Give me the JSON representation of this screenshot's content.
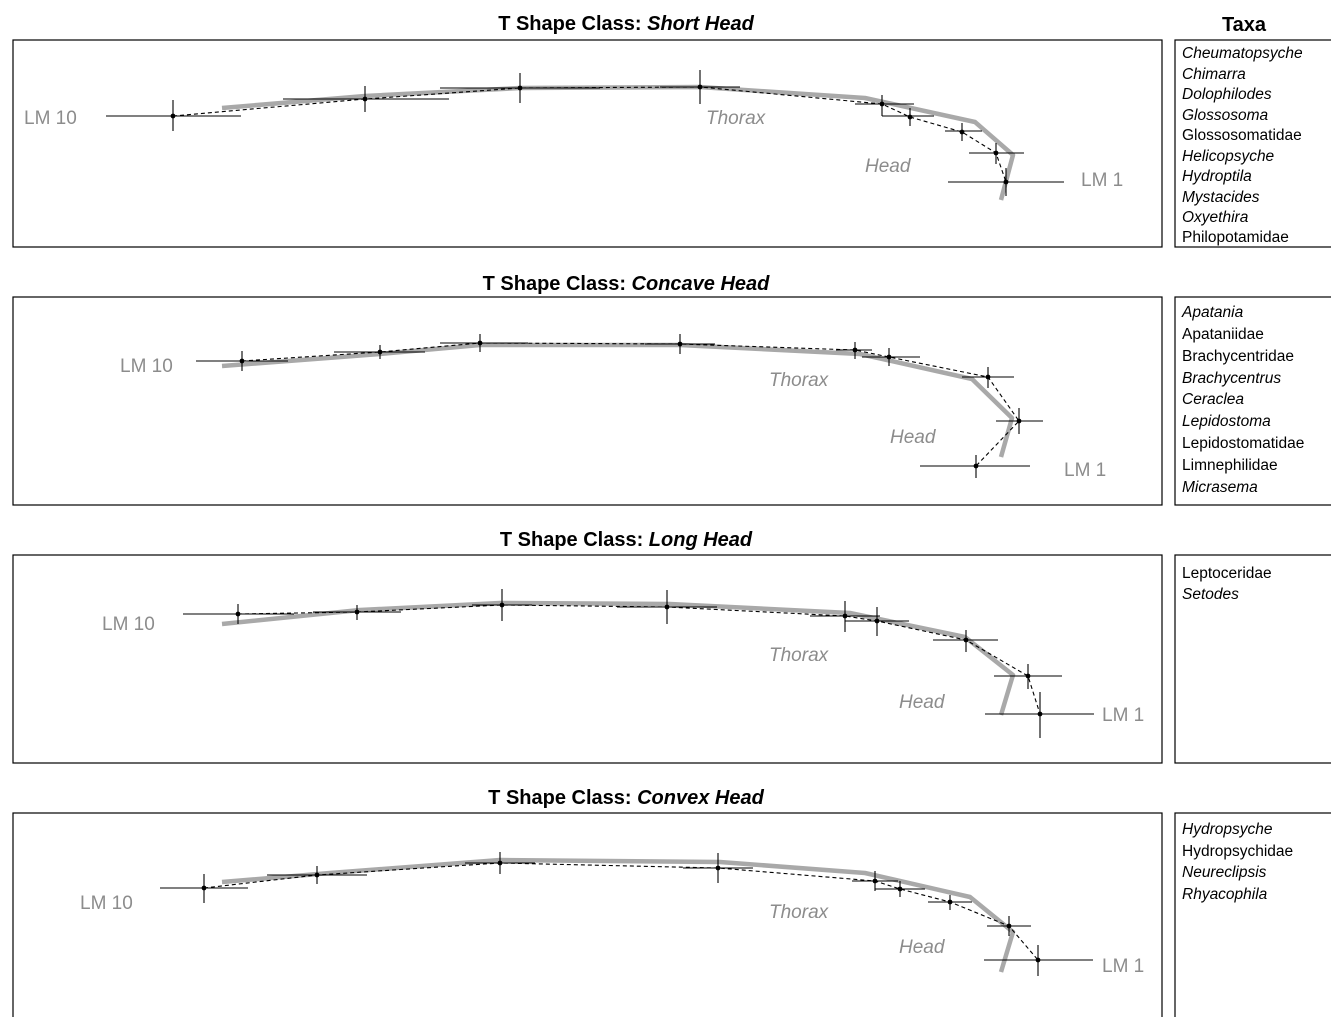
{
  "taxa_header": "Taxa",
  "colors": {
    "mean_shape": "#a9a9a9",
    "landmarks": "#000000",
    "labels": "#8c8c8c"
  },
  "panels": [
    {
      "title_prefix": "T Shape Class: ",
      "title_class": "Short Head",
      "lm_start_label": "LM 10",
      "lm_end_label": "LM 1",
      "thorax_label": "Thorax",
      "head_label": "Head",
      "taxa": [
        {
          "name": "Cheumatopsyche",
          "italic": true
        },
        {
          "name": "Chimarra",
          "italic": true
        },
        {
          "name": "Dolophilodes",
          "italic": true
        },
        {
          "name": "Glossosoma",
          "italic": true
        },
        {
          "name": "Glossosomatidae",
          "italic": false
        },
        {
          "name": "Helicopsyche",
          "italic": true
        },
        {
          "name": "Hydroptila",
          "italic": true
        },
        {
          "name": "Mystacides",
          "italic": true
        },
        {
          "name": "Oxyethira",
          "italic": true
        },
        {
          "name": "Philopotamidae",
          "italic": false
        }
      ]
    },
    {
      "title_prefix": "T Shape Class: ",
      "title_class": "Concave Head",
      "lm_start_label": "LM 10",
      "lm_end_label": "LM 1",
      "thorax_label": "Thorax",
      "head_label": "Head",
      "taxa": [
        {
          "name": "Apatania",
          "italic": true
        },
        {
          "name": "Apataniidae",
          "italic": false
        },
        {
          "name": "Brachycentridae",
          "italic": false
        },
        {
          "name": "Brachycentrus",
          "italic": true
        },
        {
          "name": "Ceraclea",
          "italic": true
        },
        {
          "name": "Lepidostoma",
          "italic": true
        },
        {
          "name": "Lepidostomatidae",
          "italic": false
        },
        {
          "name": "Limnephilidae",
          "italic": false
        },
        {
          "name": "Micrasema",
          "italic": true
        }
      ]
    },
    {
      "title_prefix": "T Shape Class: ",
      "title_class": "Long Head",
      "lm_start_label": "LM 10",
      "lm_end_label": "LM 1",
      "thorax_label": "Thorax",
      "head_label": "Head",
      "taxa": [
        {
          "name": "Leptoceridae",
          "italic": false
        },
        {
          "name": "Setodes",
          "italic": true
        }
      ]
    },
    {
      "title_prefix": "T Shape Class: ",
      "title_class": "Convex Head",
      "lm_start_label": "LM 10",
      "lm_end_label": "LM 1",
      "thorax_label": "Thorax",
      "head_label": "Head",
      "taxa": [
        {
          "name": "Hydropsyche",
          "italic": true
        },
        {
          "name": "Hydropsychidae",
          "italic": false
        },
        {
          "name": "Neureclipsis",
          "italic": true
        },
        {
          "name": "Rhyacophila",
          "italic": true
        }
      ]
    }
  ]
}
